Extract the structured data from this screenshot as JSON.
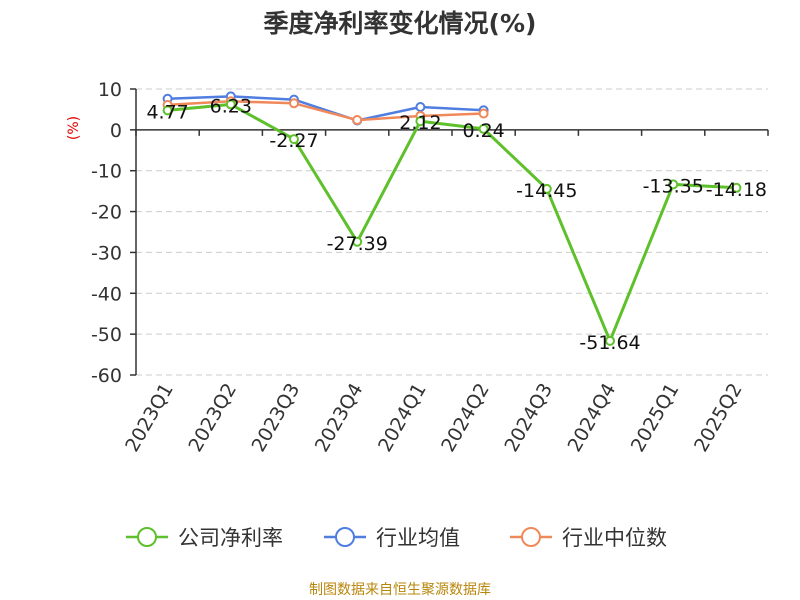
{
  "chart_data": {
    "type": "line",
    "title": "季度净利率变化情况(%)",
    "ylabel": "(%)",
    "xlabel": "",
    "categories": [
      "2023Q1",
      "2023Q2",
      "2023Q3",
      "2023Q4",
      "2024Q1",
      "2024Q2",
      "2024Q3",
      "2024Q4",
      "2025Q1",
      "2025Q2"
    ],
    "yticks": [
      10,
      0,
      -10,
      -20,
      -30,
      -40,
      -50,
      -60
    ],
    "ylim": [
      -60,
      10
    ],
    "grid": true,
    "legend_position": "bottom",
    "series": [
      {
        "name": "公司净利率",
        "color": "#5ec02b",
        "values": [
          4.77,
          6.23,
          -2.27,
          -27.39,
          2.12,
          0.24,
          -14.45,
          -51.64,
          -13.35,
          -14.18
        ],
        "labels": [
          "4.77",
          "6.23",
          "-2.27",
          "-27.39",
          "2.12",
          "0.24",
          "-14.45",
          "-51.64",
          "-13.35",
          "-14.18"
        ]
      },
      {
        "name": "行业均值",
        "color": "#4f7ee0",
        "values": [
          7.6,
          8.2,
          7.4,
          2.3,
          5.6,
          4.8,
          null,
          null,
          null,
          null
        ]
      },
      {
        "name": "行业中位数",
        "color": "#f0895a",
        "values": [
          6.1,
          7.0,
          6.5,
          2.4,
          3.4,
          4.0,
          null,
          null,
          null,
          null
        ]
      }
    ]
  },
  "footer": {
    "source": "制图数据来自恒生聚源数据库"
  }
}
